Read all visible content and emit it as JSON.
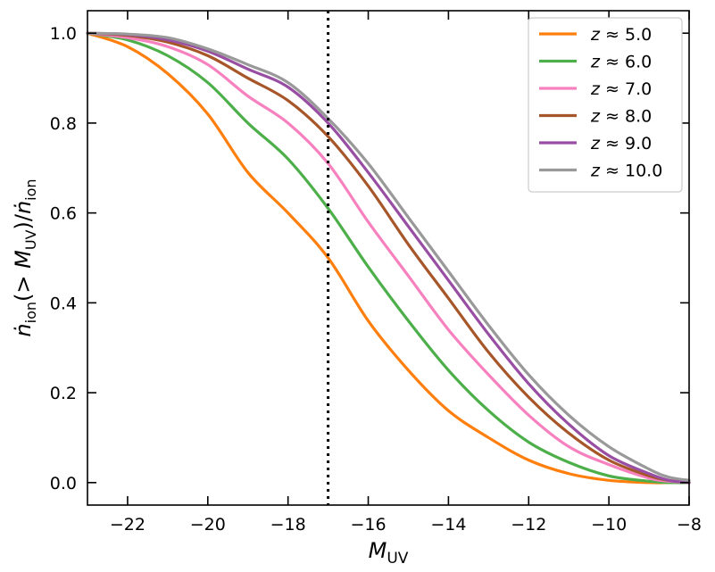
{
  "chart_data": {
    "type": "line",
    "xlabel": "M_UV",
    "ylabel": "ṅ_ion(>M_UV)/ṅ_ion",
    "xlim": [
      -23,
      -8
    ],
    "ylim": [
      -0.05,
      1.05
    ],
    "xticks": [
      -22,
      -20,
      -18,
      -16,
      -14,
      -12,
      -10,
      -8
    ],
    "yticks": [
      0.0,
      0.2,
      0.4,
      0.6,
      0.8,
      1.0
    ],
    "xtick_labels": [
      "−22",
      "−20",
      "−18",
      "−16",
      "−14",
      "−12",
      "−10",
      "−8"
    ],
    "ytick_labels": [
      "0.0",
      "0.2",
      "0.4",
      "0.6",
      "0.8",
      "1.0"
    ],
    "grid": false,
    "legend_position": "top-right",
    "reference_line": {
      "x": -17,
      "style": "dotted",
      "color": "#000000"
    },
    "series": [
      {
        "name": "z ≈ 5.0",
        "color": "#ff7f0e",
        "x": [
          -23,
          -22,
          -21,
          -20,
          -19,
          -18,
          -17,
          -16,
          -15,
          -14,
          -13,
          -12,
          -11,
          -10,
          -9,
          -8.5,
          -8
        ],
        "y": [
          1.0,
          0.97,
          0.91,
          0.82,
          0.69,
          0.6,
          0.5,
          0.36,
          0.25,
          0.16,
          0.1,
          0.05,
          0.02,
          0.005,
          0.0,
          0.0,
          0.0
        ]
      },
      {
        "name": "z ≈ 6.0",
        "color": "#4daf4a",
        "x": [
          -23,
          -22,
          -21,
          -20,
          -19,
          -18,
          -17,
          -16,
          -15,
          -14,
          -13,
          -12,
          -11,
          -10,
          -9,
          -8.5,
          -8
        ],
        "y": [
          1.0,
          0.985,
          0.95,
          0.89,
          0.8,
          0.72,
          0.61,
          0.48,
          0.36,
          0.25,
          0.16,
          0.09,
          0.045,
          0.015,
          0.003,
          0.0,
          0.0
        ]
      },
      {
        "name": "z ≈ 7.0",
        "color": "#f781bf",
        "x": [
          -23,
          -22,
          -21,
          -20,
          -19,
          -18,
          -17,
          -16,
          -15,
          -14,
          -13,
          -12,
          -11,
          -10,
          -9,
          -8.5,
          -8
        ],
        "y": [
          1.0,
          0.99,
          0.97,
          0.93,
          0.86,
          0.8,
          0.71,
          0.58,
          0.46,
          0.34,
          0.24,
          0.15,
          0.08,
          0.04,
          0.01,
          0.003,
          0.0
        ]
      },
      {
        "name": "z ≈ 8.0",
        "color": "#a65628",
        "x": [
          -23,
          -22,
          -21,
          -20,
          -19,
          -18,
          -17,
          -16,
          -15,
          -14,
          -13,
          -12,
          -11,
          -10,
          -9,
          -8.5,
          -8
        ],
        "y": [
          1.0,
          0.995,
          0.98,
          0.95,
          0.9,
          0.85,
          0.77,
          0.66,
          0.53,
          0.41,
          0.29,
          0.19,
          0.11,
          0.05,
          0.015,
          0.005,
          0.0
        ]
      },
      {
        "name": "z ≈ 9.0",
        "color": "#984ea3",
        "x": [
          -23,
          -22,
          -21,
          -20,
          -19,
          -18,
          -17,
          -16,
          -15,
          -14,
          -13,
          -12,
          -11,
          -10,
          -9,
          -8.5,
          -8
        ],
        "y": [
          1.0,
          0.997,
          0.985,
          0.96,
          0.92,
          0.88,
          0.8,
          0.69,
          0.57,
          0.45,
          0.33,
          0.22,
          0.13,
          0.06,
          0.02,
          0.005,
          0.0
        ]
      },
      {
        "name": "z ≈ 10.0",
        "color": "#999999",
        "x": [
          -23,
          -22,
          -21,
          -20,
          -19,
          -18,
          -17,
          -16,
          -15,
          -14,
          -13,
          -12,
          -11,
          -10,
          -9,
          -8.5,
          -8
        ],
        "y": [
          1.0,
          0.998,
          0.99,
          0.965,
          0.93,
          0.89,
          0.81,
          0.71,
          0.59,
          0.47,
          0.35,
          0.24,
          0.15,
          0.08,
          0.03,
          0.012,
          0.005
        ]
      }
    ]
  }
}
